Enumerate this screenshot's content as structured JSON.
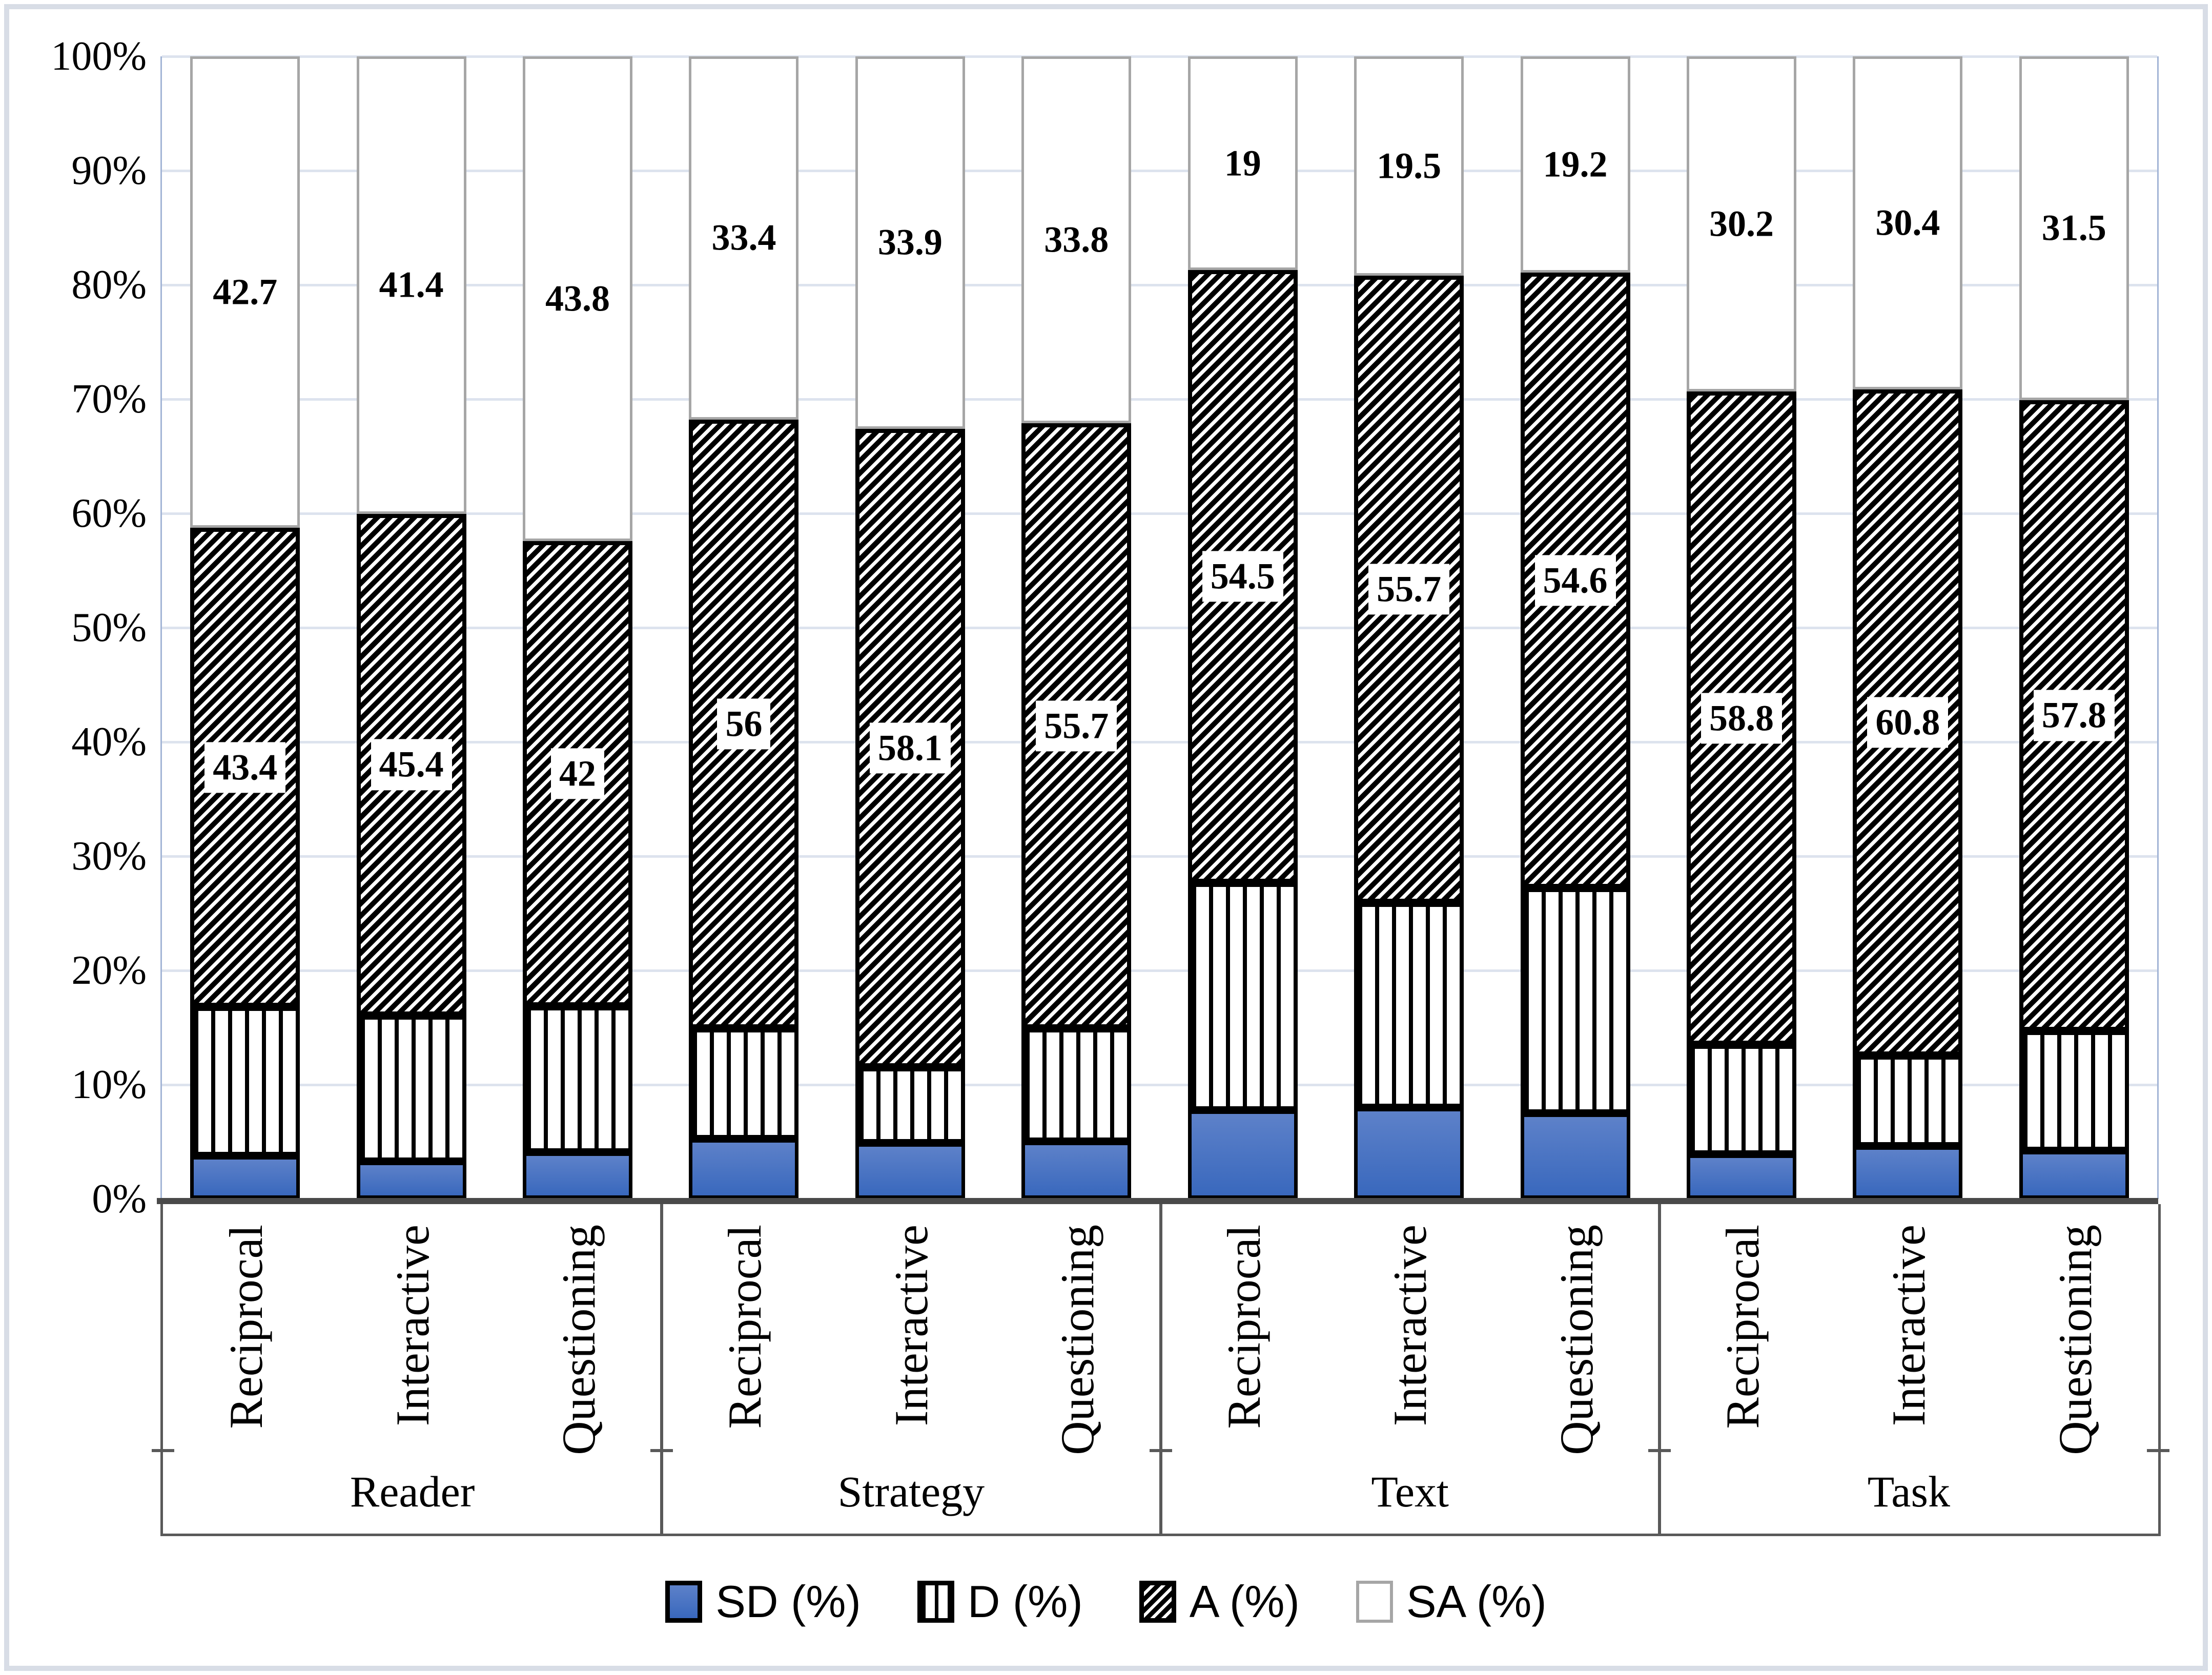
{
  "chart_data": {
    "type": "bar",
    "subtype": "100-percent-stacked-column",
    "title": "",
    "xlabel": "",
    "ylabel": "",
    "groups": [
      "Reader",
      "Strategy",
      "Text",
      "Task"
    ],
    "categories": [
      "Reciprocal",
      "Interactive",
      "Questioning",
      "Reciprocal",
      "Interactive",
      "Questioning",
      "Reciprocal",
      "Interactive",
      "Questioning",
      "Reciprocal",
      "Interactive",
      "Questioning"
    ],
    "series": [
      {
        "name": "SD (%)",
        "pattern": "solid-blue",
        "values": [
          3.9,
          3.4,
          4.2,
          5.5,
          5.1,
          5.3,
          7.9,
          8.1,
          7.6,
          4.0,
          4.8,
          4.4
        ],
        "labels": [
          "",
          "",
          "",
          "",
          "",
          "",
          "",
          "",
          "",
          "",
          "",
          ""
        ]
      },
      {
        "name": "D (%)",
        "pattern": "vertical-stripes",
        "values": [
          13.5,
          13.2,
          13.2,
          10.2,
          6.9,
          10.4,
          20.2,
          18.2,
          20.0,
          9.9,
          8.3,
          11.0
        ],
        "labels": [
          "",
          "",
          "",
          "",
          "",
          "",
          "",
          "",
          "",
          "",
          "",
          ""
        ]
      },
      {
        "name": "A (%)",
        "pattern": "diagonal-stripes",
        "values": [
          43.4,
          45.4,
          42,
          56,
          58.1,
          55.7,
          54.5,
          55.7,
          54.6,
          58.8,
          60.8,
          57.8
        ],
        "labels": [
          "43.4",
          "45.4",
          "42",
          "56",
          "58.1",
          "55.7",
          "54.5",
          "55.7",
          "54.6",
          "58.8",
          "60.8",
          "57.8"
        ]
      },
      {
        "name": "SA (%)",
        "pattern": "dots",
        "values": [
          42.7,
          41.4,
          43.8,
          33.4,
          33.9,
          33.8,
          19,
          19.5,
          19.2,
          30.2,
          30.4,
          31.5
        ],
        "labels": [
          "42.7",
          "41.4",
          "43.8",
          "33.4",
          "33.9",
          "33.8",
          "19",
          "19.5",
          "19.2",
          "30.2",
          "30.4",
          "31.5"
        ]
      }
    ],
    "y_ticks": [
      "100%",
      "90%",
      "80%",
      "70%",
      "60%",
      "50%",
      "40%",
      "30%",
      "20%",
      "10%",
      "0%"
    ],
    "ylim": [
      0,
      100
    ],
    "grid": true,
    "legend": {
      "position": "bottom",
      "entries": [
        "SD (%)",
        "D (%)",
        "A (%)",
        "SA (%)"
      ]
    }
  },
  "colors": {
    "sd_fill_top": "#5d81c9",
    "sd_fill_bottom": "#3968bd",
    "legend_sd_blue": "#4472c4",
    "pattern_ink": "#000000",
    "sa_segment_border": "#a6a6a6",
    "segment_border": "#000000",
    "gridline": "#dde3ee",
    "axis_line": "#4a4a4a",
    "category_table_line": "#595959",
    "plot_side_border": "#a3b5d6",
    "figure_border": "#d8dde6",
    "label_text": "#000000",
    "label_background": "#ffffff"
  }
}
